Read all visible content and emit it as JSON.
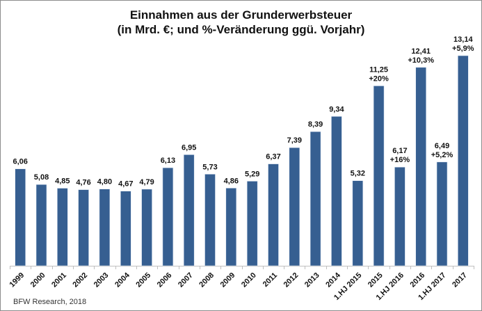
{
  "chart_data": {
    "type": "bar",
    "title": "Einnahmen aus der Grunderwerbsteuer",
    "subtitle": "(in Mrd. €; und %-Veränderung ggü. Vorjahr)",
    "xlabel": "",
    "ylabel": "",
    "ylim": [
      0,
      13.14
    ],
    "grid": false,
    "legend": "none",
    "bar_color": "#365f91",
    "categories": [
      "1999",
      "2000",
      "2001",
      "2002",
      "2003",
      "2004",
      "2005",
      "2006",
      "2007",
      "2008",
      "2009",
      "2010",
      "2011",
      "2012",
      "2013",
      "2014",
      "1.HJ 2015",
      "2015",
      "1.HJ 2016",
      "2016",
      "1.HJ 2017",
      "2017"
    ],
    "values": [
      6.06,
      5.08,
      4.85,
      4.76,
      4.8,
      4.67,
      4.79,
      6.13,
      6.95,
      5.73,
      4.86,
      5.29,
      6.37,
      7.39,
      8.39,
      9.34,
      5.32,
      11.25,
      6.17,
      12.41,
      6.49,
      13.14
    ],
    "value_labels": [
      "6,06",
      "5,08",
      "4,85",
      "4,76",
      "4,80",
      "4,67",
      "4,79",
      "6,13",
      "6,95",
      "5,73",
      "4,86",
      "5,29",
      "6,37",
      "7,39",
      "8,39",
      "9,34",
      "5,32",
      "11,25",
      "6,17",
      "12,41",
      "6,49",
      "13,14"
    ],
    "change_labels": [
      "",
      "",
      "",
      "",
      "",
      "",
      "",
      "",
      "",
      "",
      "",
      "",
      "",
      "",
      "",
      "",
      "",
      "+20%",
      "+16%",
      "+10,3%",
      "+5,2%",
      "+5,9%"
    ]
  },
  "source": "BFW Research, 2018"
}
